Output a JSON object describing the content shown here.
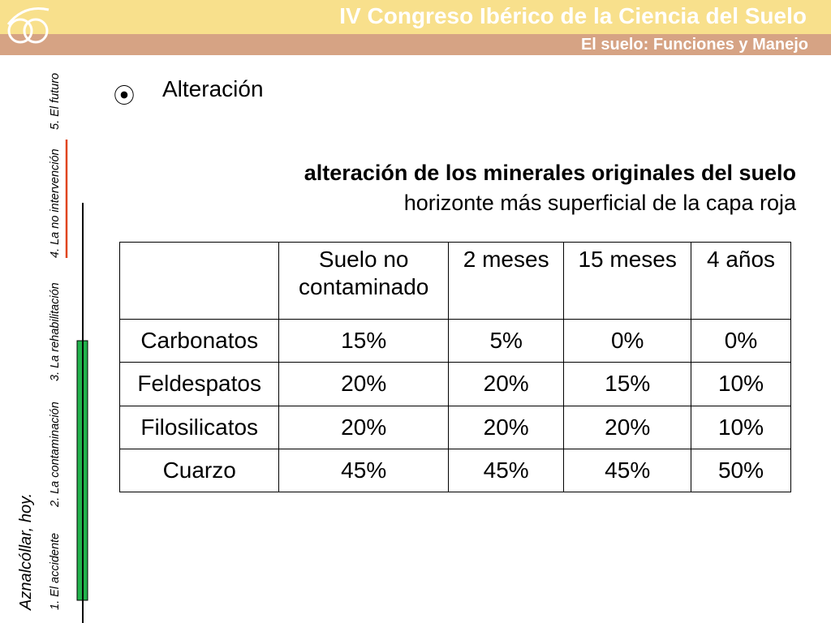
{
  "header": {
    "title": "IV Congreso Ibérico de la Ciencia del Suelo",
    "subtitle": "El suelo: Funciones y Manejo"
  },
  "sidebar": {
    "title": "Aznalcóllar, hoy.",
    "sections": [
      "1. El accidente",
      "2. La contaminación",
      "3. La rehabilitación",
      "4. La no intervención",
      "5. El futuro"
    ]
  },
  "bullet": "Alteración",
  "table": {
    "title": "alteración de los minerales originales del suelo",
    "subtitle": "horizonte más superficial de la capa roja",
    "columns": [
      "Suelo no contaminado",
      "2 meses",
      "15 meses",
      "4 años"
    ],
    "rows": [
      {
        "label": "Carbonatos",
        "values": [
          "15%",
          "5%",
          "0%",
          "0%"
        ]
      },
      {
        "label": "Feldespatos",
        "values": [
          "20%",
          "20%",
          "15%",
          "10%"
        ]
      },
      {
        "label": "Filosilicatos",
        "values": [
          "20%",
          "20%",
          "20%",
          "10%"
        ]
      },
      {
        "label": "Cuarzo",
        "values": [
          "45%",
          "45%",
          "45%",
          "50%"
        ]
      }
    ]
  }
}
